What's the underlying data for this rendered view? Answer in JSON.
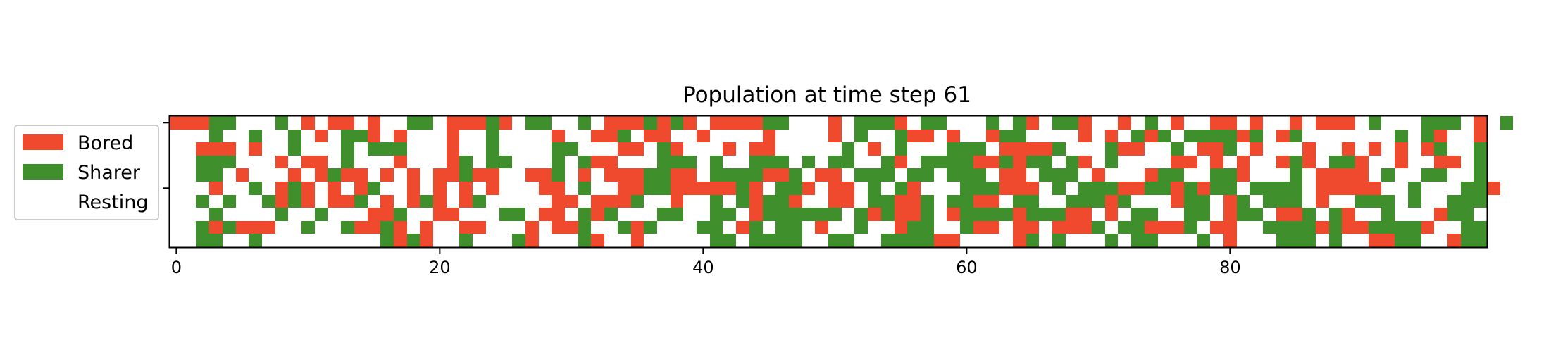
{
  "chart_data": {
    "type": "heatmap",
    "title": "Population at time step 61",
    "xlabel": "",
    "ylabel": "",
    "columns": 100,
    "rows": 10,
    "xlim": [
      -0.5,
      99.5
    ],
    "ylim": [
      9.5,
      -0.5
    ],
    "x_ticks": [
      0,
      20,
      40,
      60,
      80
    ],
    "x_tick_labels": [
      "0",
      "20",
      "40",
      "60",
      "80"
    ],
    "y_ticks": [
      0,
      5
    ],
    "y_tick_labels": [
      "",
      ""
    ],
    "grid": false,
    "legend": {
      "placement": "left",
      "entries": [
        {
          "name": "Bored",
          "state": "B",
          "color": "#ef4a2e"
        },
        {
          "name": "Sharer",
          "state": "S",
          "color": "#3f8f2c"
        },
        {
          "name": "Resting",
          "state": "R",
          "color": "#ffffff"
        }
      ]
    },
    "states": {
      "B": "Bored",
      "S": "Sharer",
      ".": "Resting"
    },
    "colors": {
      "B": "#ef4a2e",
      "S": "#3f8f2c",
      ".": "#ffffff"
    },
    "cells": [
      "BBBSS...S.B.BB.B..SS.BBBSB.SS..S.BBBSBSB.BBBBSS...B.SSSB.SS...S.SB.SSB..B.S.B..BB.B..B.BBB.S...SSS.B.S",
      "...S..S..S.B.SSB.B...B..S....B..BBS.BB..B....B....B.S..SBB.B..BSS....B.B.SBS.SSSSBS.BS.......S.SB..B..",
      "..BBB.B..S...S.SSS...B..S....SS...BB.SB...B.BB.....S.B.S...SSS.BBBBS...SBB..S.BBS.B...B..B.B.B.BS..S..",
      "..SSS...B.BB.S...B...BS.SS...S.SBB...SSS.S..SSS.S.SS..SB.SSSSBBSBSS.SB.S....BB.B.B..BSB.SSB..B..BB.S..",
      "..SS.B...B.BSBB.B.B.BBSBB..BBS.B.BBBSSBB.SSSSBBS.BB.SSS.SS.SSS.BB.SSS.B...BSS..SSB...S.BBBB.S..SS..S.",
      "...B..S.BSB.B.BS..B.B.B.B...BB.S..BBSSBBBBBSB.SSB.BB.S.SB...SSSBBB.S.SSSBBSSBSBSS.SSSS.BBBBB..S...SSB",
      "..S.S..SBSB.BBS.B.BSB.BS.....BB.BBBS..B..S.SBSSB..BB.SSBBS.SSBB.SS..SSSBS...BSS.BS.SSS.B..SSS.S..SSS..",
      "...S....S..S...BBS..BB...SS.BB.SBS...SS..SS.BSSSSSS.SBSBBS.BSSSSBSSSBB.B.SS..SS.BSS.BBS.SB..S...BSS..",
      "..SBSBBB..S..SBBSB.B..BB...B.BBS..SBS...SS.BS.SS.B..S..BSS..SBB.BB.BBBS.SSBBBS.BB..SSSSBSBBSSSSB..SS",
      "..SS..S.........SBSB..S...SB...SB..B.....SS.SSSS..SS..SSSSBB....BS.S...S.SS...S.B...SSS.S..BBSS..BSS"
    ]
  }
}
